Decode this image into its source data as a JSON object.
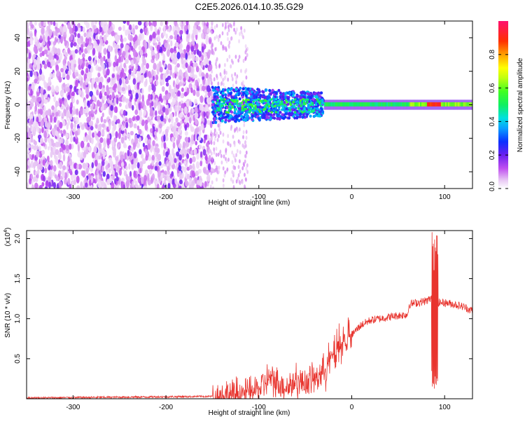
{
  "title": "C2E5.2026.014.10.35.G29",
  "chart_data": [
    {
      "type": "heatmap",
      "xlabel": "Height of straight line (km)",
      "ylabel": "Frequency (Hz)",
      "xlim": [
        -350,
        130
      ],
      "ylim": [
        -50,
        50
      ],
      "x_ticks": [
        "-300",
        "-200",
        "-100",
        "0",
        "100"
      ],
      "y_ticks": [
        "-40",
        "-20",
        "0",
        "20",
        "40"
      ],
      "colorbar": {
        "label": "Normalized spectral amplitude",
        "range": [
          0.0,
          1.0
        ],
        "ticks": [
          "0.0",
          "0.2",
          "0.4",
          "0.6",
          "0.8"
        ]
      }
    },
    {
      "type": "line",
      "xlabel": "Height of straight line (km)",
      "ylabel": "SNR (10 * v/v)",
      "y_multiplier": "(x10",
      "y_multiplier_exp": "4",
      "y_multiplier_close": ")",
      "xlim": [
        -350,
        130
      ],
      "ylim": [
        0,
        2.1
      ],
      "x_ticks": [
        "-300",
        "-200",
        "-100",
        "0",
        "100"
      ],
      "y_ticks": [
        "0.5",
        "1.0",
        "1.5",
        "2.0"
      ],
      "series": [
        {
          "color": "#e8342e",
          "x": [
            -350,
            -250,
            -150,
            -120,
            -100,
            -90,
            -80,
            -70,
            -60,
            -50,
            -40,
            -30,
            -20,
            -10,
            0,
            10,
            20,
            30,
            40,
            50,
            60,
            62,
            70,
            80,
            85,
            88,
            90,
            95,
            100,
            110,
            120,
            130
          ],
          "y": [
            0.01,
            0.02,
            0.03,
            0.06,
            0.12,
            0.25,
            0.2,
            0.15,
            0.22,
            0.2,
            0.25,
            0.35,
            0.55,
            0.7,
            0.8,
            0.92,
            0.98,
            1.0,
            1.02,
            1.04,
            1.05,
            1.18,
            1.2,
            1.22,
            1.25,
            1.4,
            1.2,
            1.2,
            1.2,
            1.18,
            1.15,
            1.1
          ]
        }
      ]
    }
  ]
}
